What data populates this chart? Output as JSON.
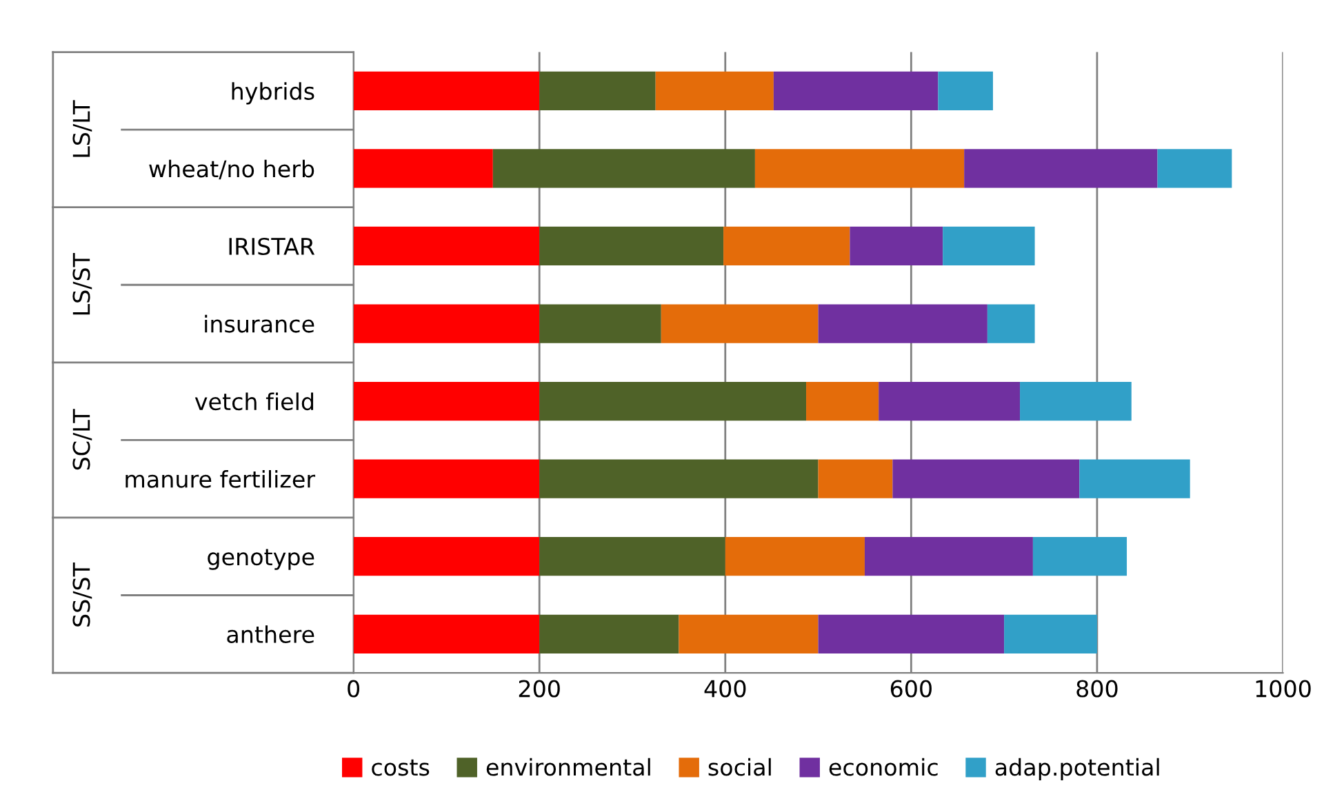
{
  "chart_data": {
    "type": "bar",
    "orientation": "horizontal",
    "stacked": true,
    "categories": [
      "hybrids",
      "wheat/no herb",
      "IRISTAR",
      "insurance",
      "vetch field",
      "manure fertilizer",
      "genotype",
      "anthere"
    ],
    "series": [
      {
        "name": "costs",
        "color": "#ff0000",
        "values": [
          200,
          150,
          200,
          200,
          200,
          200,
          200,
          200
        ]
      },
      {
        "name": "environmental",
        "color": "#4f6228",
        "values": [
          125,
          282,
          198,
          131,
          287,
          300,
          200,
          150
        ]
      },
      {
        "name": "social",
        "color": "#e46c0a",
        "values": [
          127,
          225,
          136,
          169,
          78,
          80,
          150,
          150
        ]
      },
      {
        "name": "economic",
        "color": "#7030a0",
        "values": [
          177,
          208,
          100,
          182,
          152,
          201,
          181,
          200
        ]
      },
      {
        "name": "adap.potential",
        "color": "#31a0c8",
        "values": [
          59,
          80,
          99,
          51,
          120,
          119,
          101,
          100
        ]
      }
    ],
    "xlim": [
      0,
      1000
    ],
    "xticks": [
      0,
      200,
      400,
      600,
      800,
      1000
    ],
    "grid": "x",
    "legend": "bottom",
    "annotations": [
      "LS/LT",
      "LS/ST",
      "SC/LT",
      "SS/ST"
    ]
  }
}
